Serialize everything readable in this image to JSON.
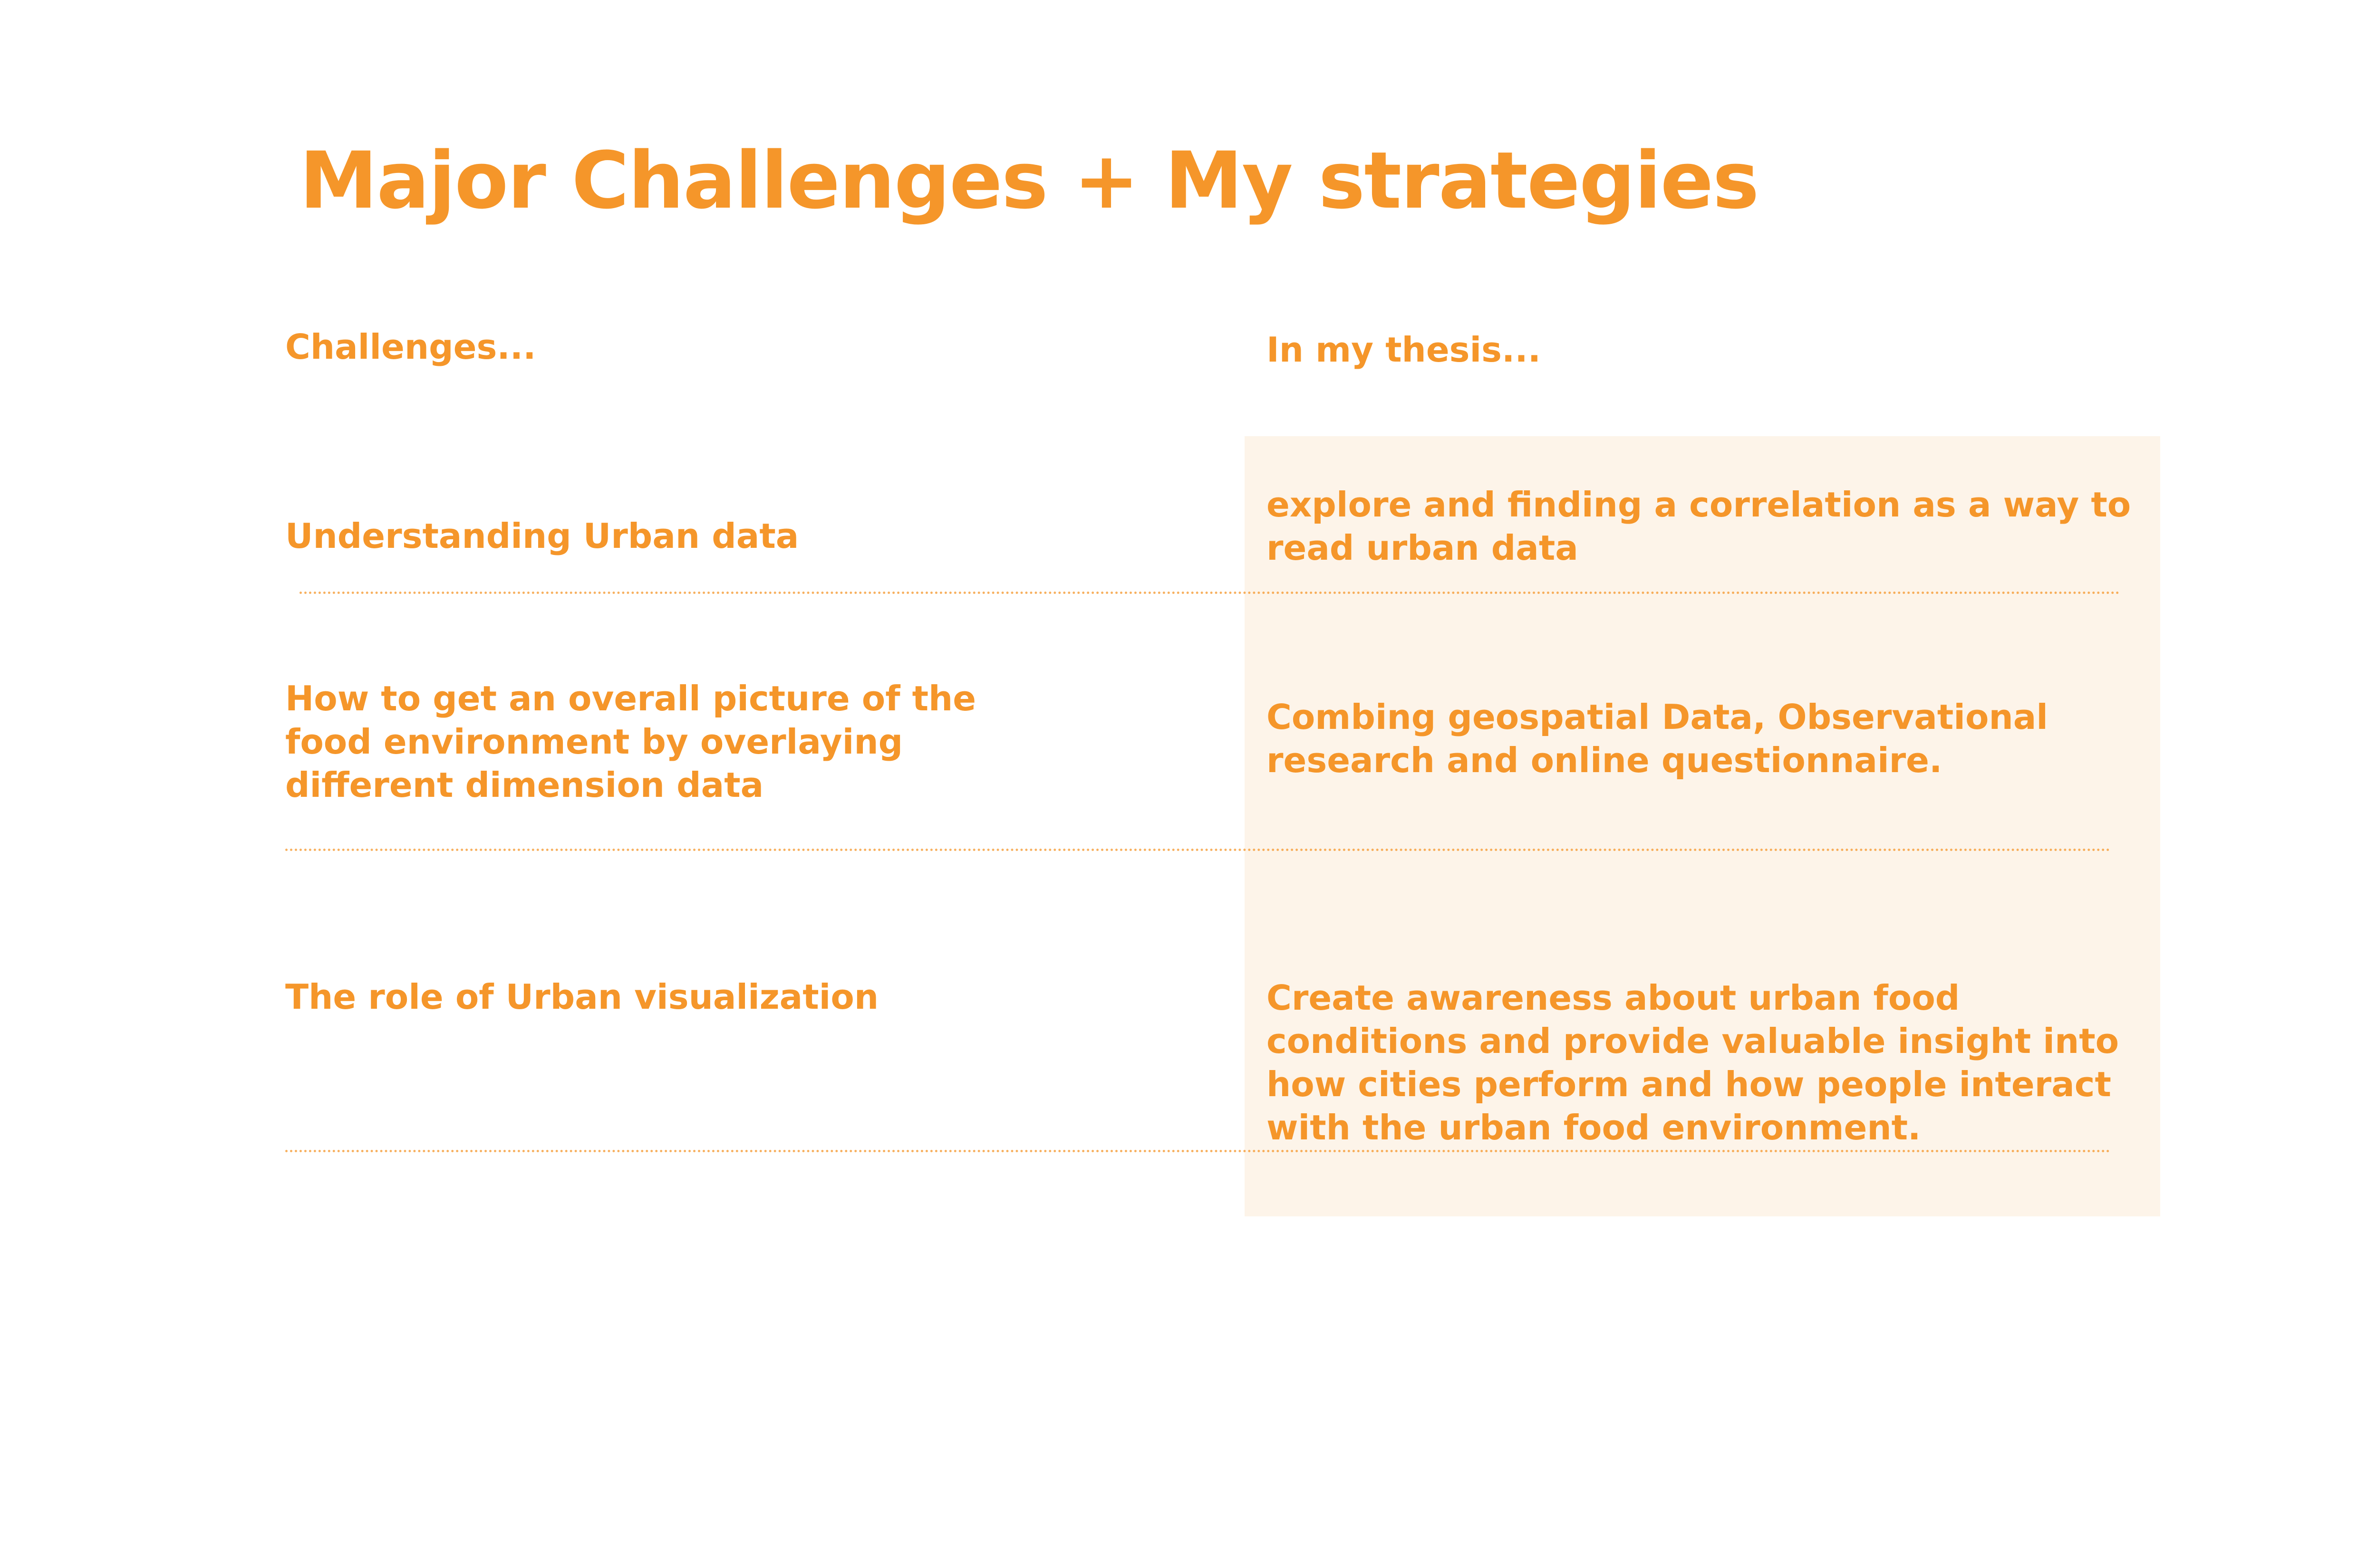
{
  "title": "Major Challenges + My strategies",
  "columns": {
    "left_header": "Challenges...",
    "right_header": "In my thesis..."
  },
  "rows": [
    {
      "challenge": "Understanding Urban data",
      "strategy": "explore and finding a correlation as a way to read urban data"
    },
    {
      "challenge": "How to get an overall picture of the food environment by overlaying different dimension data",
      "strategy": "Combing geospatial Data, Observational research and online questionnaire."
    },
    {
      "challenge": "The role of Urban visualization",
      "strategy": "Create awareness about urban food conditions and provide valuable insight into how cities perform and how people interact with the urban food environment."
    }
  ],
  "colors": {
    "accent": "#f5962a",
    "panel": "#fdf4e9",
    "background": "#ffffff"
  }
}
